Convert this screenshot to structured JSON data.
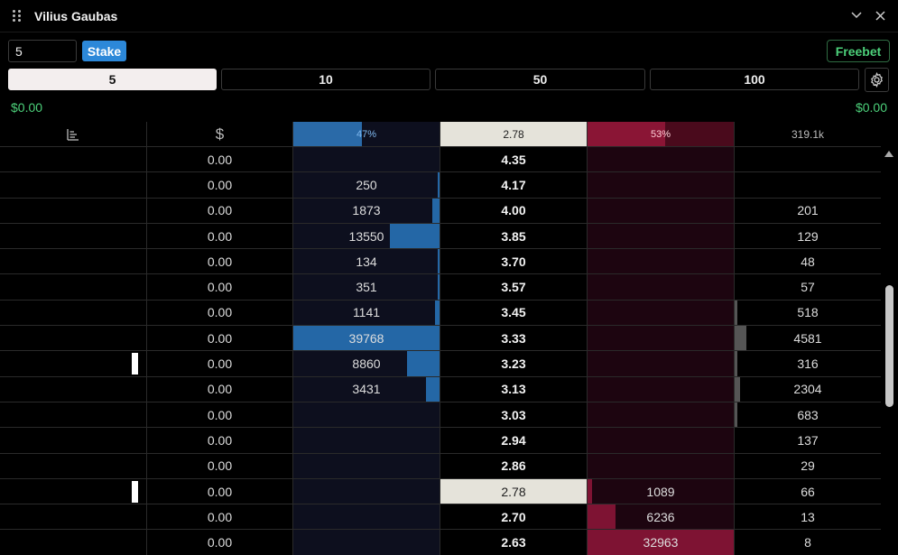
{
  "window": {
    "title": "Vilius Gaubas"
  },
  "stake": {
    "value": "5",
    "button_label": "Stake",
    "freebet_label": "Freebet"
  },
  "presets": [
    "5",
    "10",
    "50",
    "100"
  ],
  "amounts": {
    "left": "$0.00",
    "right": "$0.00"
  },
  "header": {
    "currency_symbol": "$",
    "back_percent": "47%",
    "back_fill": 0.47,
    "last_price": "2.78",
    "lay_percent": "53%",
    "lay_fill": 0.53,
    "total_volume": "319.1k"
  },
  "rows": [
    {
      "pl": "0.00",
      "back": "",
      "back_fill": 0,
      "price": "4.35",
      "lay": "",
      "lay_fill": 0,
      "vol": "",
      "vol_fill": 0,
      "marker": false,
      "ltp": false
    },
    {
      "pl": "0.00",
      "back": "250",
      "back_fill": 0.01,
      "price": "4.17",
      "lay": "",
      "lay_fill": 0,
      "vol": "",
      "vol_fill": 0,
      "marker": false,
      "ltp": false
    },
    {
      "pl": "0.00",
      "back": "1873",
      "back_fill": 0.05,
      "price": "4.00",
      "lay": "",
      "lay_fill": 0,
      "vol": "201",
      "vol_fill": 0,
      "marker": false,
      "ltp": false
    },
    {
      "pl": "0.00",
      "back": "13550",
      "back_fill": 0.34,
      "price": "3.85",
      "lay": "",
      "lay_fill": 0,
      "vol": "129",
      "vol_fill": 0,
      "marker": false,
      "ltp": false
    },
    {
      "pl": "0.00",
      "back": "134",
      "back_fill": 0.01,
      "price": "3.70",
      "lay": "",
      "lay_fill": 0,
      "vol": "48",
      "vol_fill": 0,
      "marker": false,
      "ltp": false
    },
    {
      "pl": "0.00",
      "back": "351",
      "back_fill": 0.01,
      "price": "3.57",
      "lay": "",
      "lay_fill": 0,
      "vol": "57",
      "vol_fill": 0,
      "marker": false,
      "ltp": false
    },
    {
      "pl": "0.00",
      "back": "1141",
      "back_fill": 0.03,
      "price": "3.45",
      "lay": "",
      "lay_fill": 0,
      "vol": "518",
      "vol_fill": 0.01,
      "marker": false,
      "ltp": false
    },
    {
      "pl": "0.00",
      "back": "39768",
      "back_fill": 1.0,
      "price": "3.33",
      "lay": "",
      "lay_fill": 0,
      "vol": "4581",
      "vol_fill": 0.08,
      "marker": false,
      "ltp": false
    },
    {
      "pl": "0.00",
      "back": "8860",
      "back_fill": 0.22,
      "price": "3.23",
      "lay": "",
      "lay_fill": 0,
      "vol": "316",
      "vol_fill": 0.01,
      "marker": true,
      "ltp": false
    },
    {
      "pl": "0.00",
      "back": "3431",
      "back_fill": 0.09,
      "price": "3.13",
      "lay": "",
      "lay_fill": 0,
      "vol": "2304",
      "vol_fill": 0.04,
      "marker": false,
      "ltp": false
    },
    {
      "pl": "0.00",
      "back": "",
      "back_fill": 0,
      "price": "3.03",
      "lay": "",
      "lay_fill": 0,
      "vol": "683",
      "vol_fill": 0.01,
      "marker": false,
      "ltp": false
    },
    {
      "pl": "0.00",
      "back": "",
      "back_fill": 0,
      "price": "2.94",
      "lay": "",
      "lay_fill": 0,
      "vol": "137",
      "vol_fill": 0,
      "marker": false,
      "ltp": false
    },
    {
      "pl": "0.00",
      "back": "",
      "back_fill": 0,
      "price": "2.86",
      "lay": "",
      "lay_fill": 0,
      "vol": "29",
      "vol_fill": 0,
      "marker": false,
      "ltp": false
    },
    {
      "pl": "0.00",
      "back": "",
      "back_fill": 0,
      "price": "2.78",
      "lay": "1089",
      "lay_fill": 0.03,
      "vol": "66",
      "vol_fill": 0,
      "marker": true,
      "ltp": true
    },
    {
      "pl": "0.00",
      "back": "",
      "back_fill": 0,
      "price": "2.70",
      "lay": "6236",
      "lay_fill": 0.19,
      "vol": "13",
      "vol_fill": 0,
      "marker": false,
      "ltp": false
    },
    {
      "pl": "0.00",
      "back": "",
      "back_fill": 0,
      "price": "2.63",
      "lay": "32963",
      "lay_fill": 1.0,
      "vol": "8",
      "vol_fill": 0,
      "marker": false,
      "ltp": false
    }
  ],
  "icons": {
    "drag": "drag-handle-icon",
    "minimize": "chevron-down-icon",
    "close": "close-icon",
    "settings": "gear-icon",
    "chart": "bar-chart-icon"
  }
}
